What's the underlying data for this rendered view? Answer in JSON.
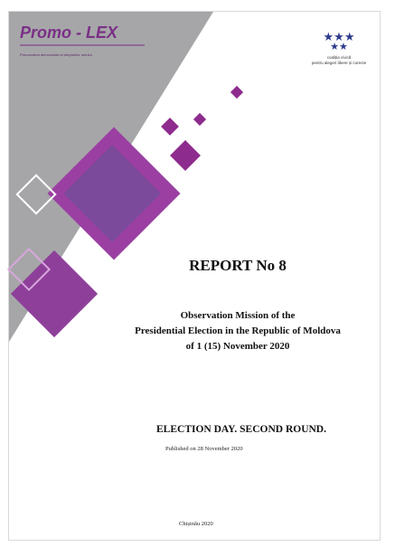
{
  "header": {
    "logo_left": {
      "name": "Promo - LEX",
      "tagline": "Promovarea democrației și drepturilor omului"
    },
    "logo_right": {
      "lines": [
        "coaliția civică",
        "pentru alegeri libere și corecte"
      ]
    }
  },
  "title": "REPORT No 8",
  "subtitle": [
    "Observation Mission of the",
    "Presidential Election in the Republic of Moldova",
    "of 1 (15) November 2020"
  ],
  "section": "ELECTION DAY. SECOND ROUND.",
  "published": "Published on 28 November 2020",
  "footer": "Chișinău 2020"
}
